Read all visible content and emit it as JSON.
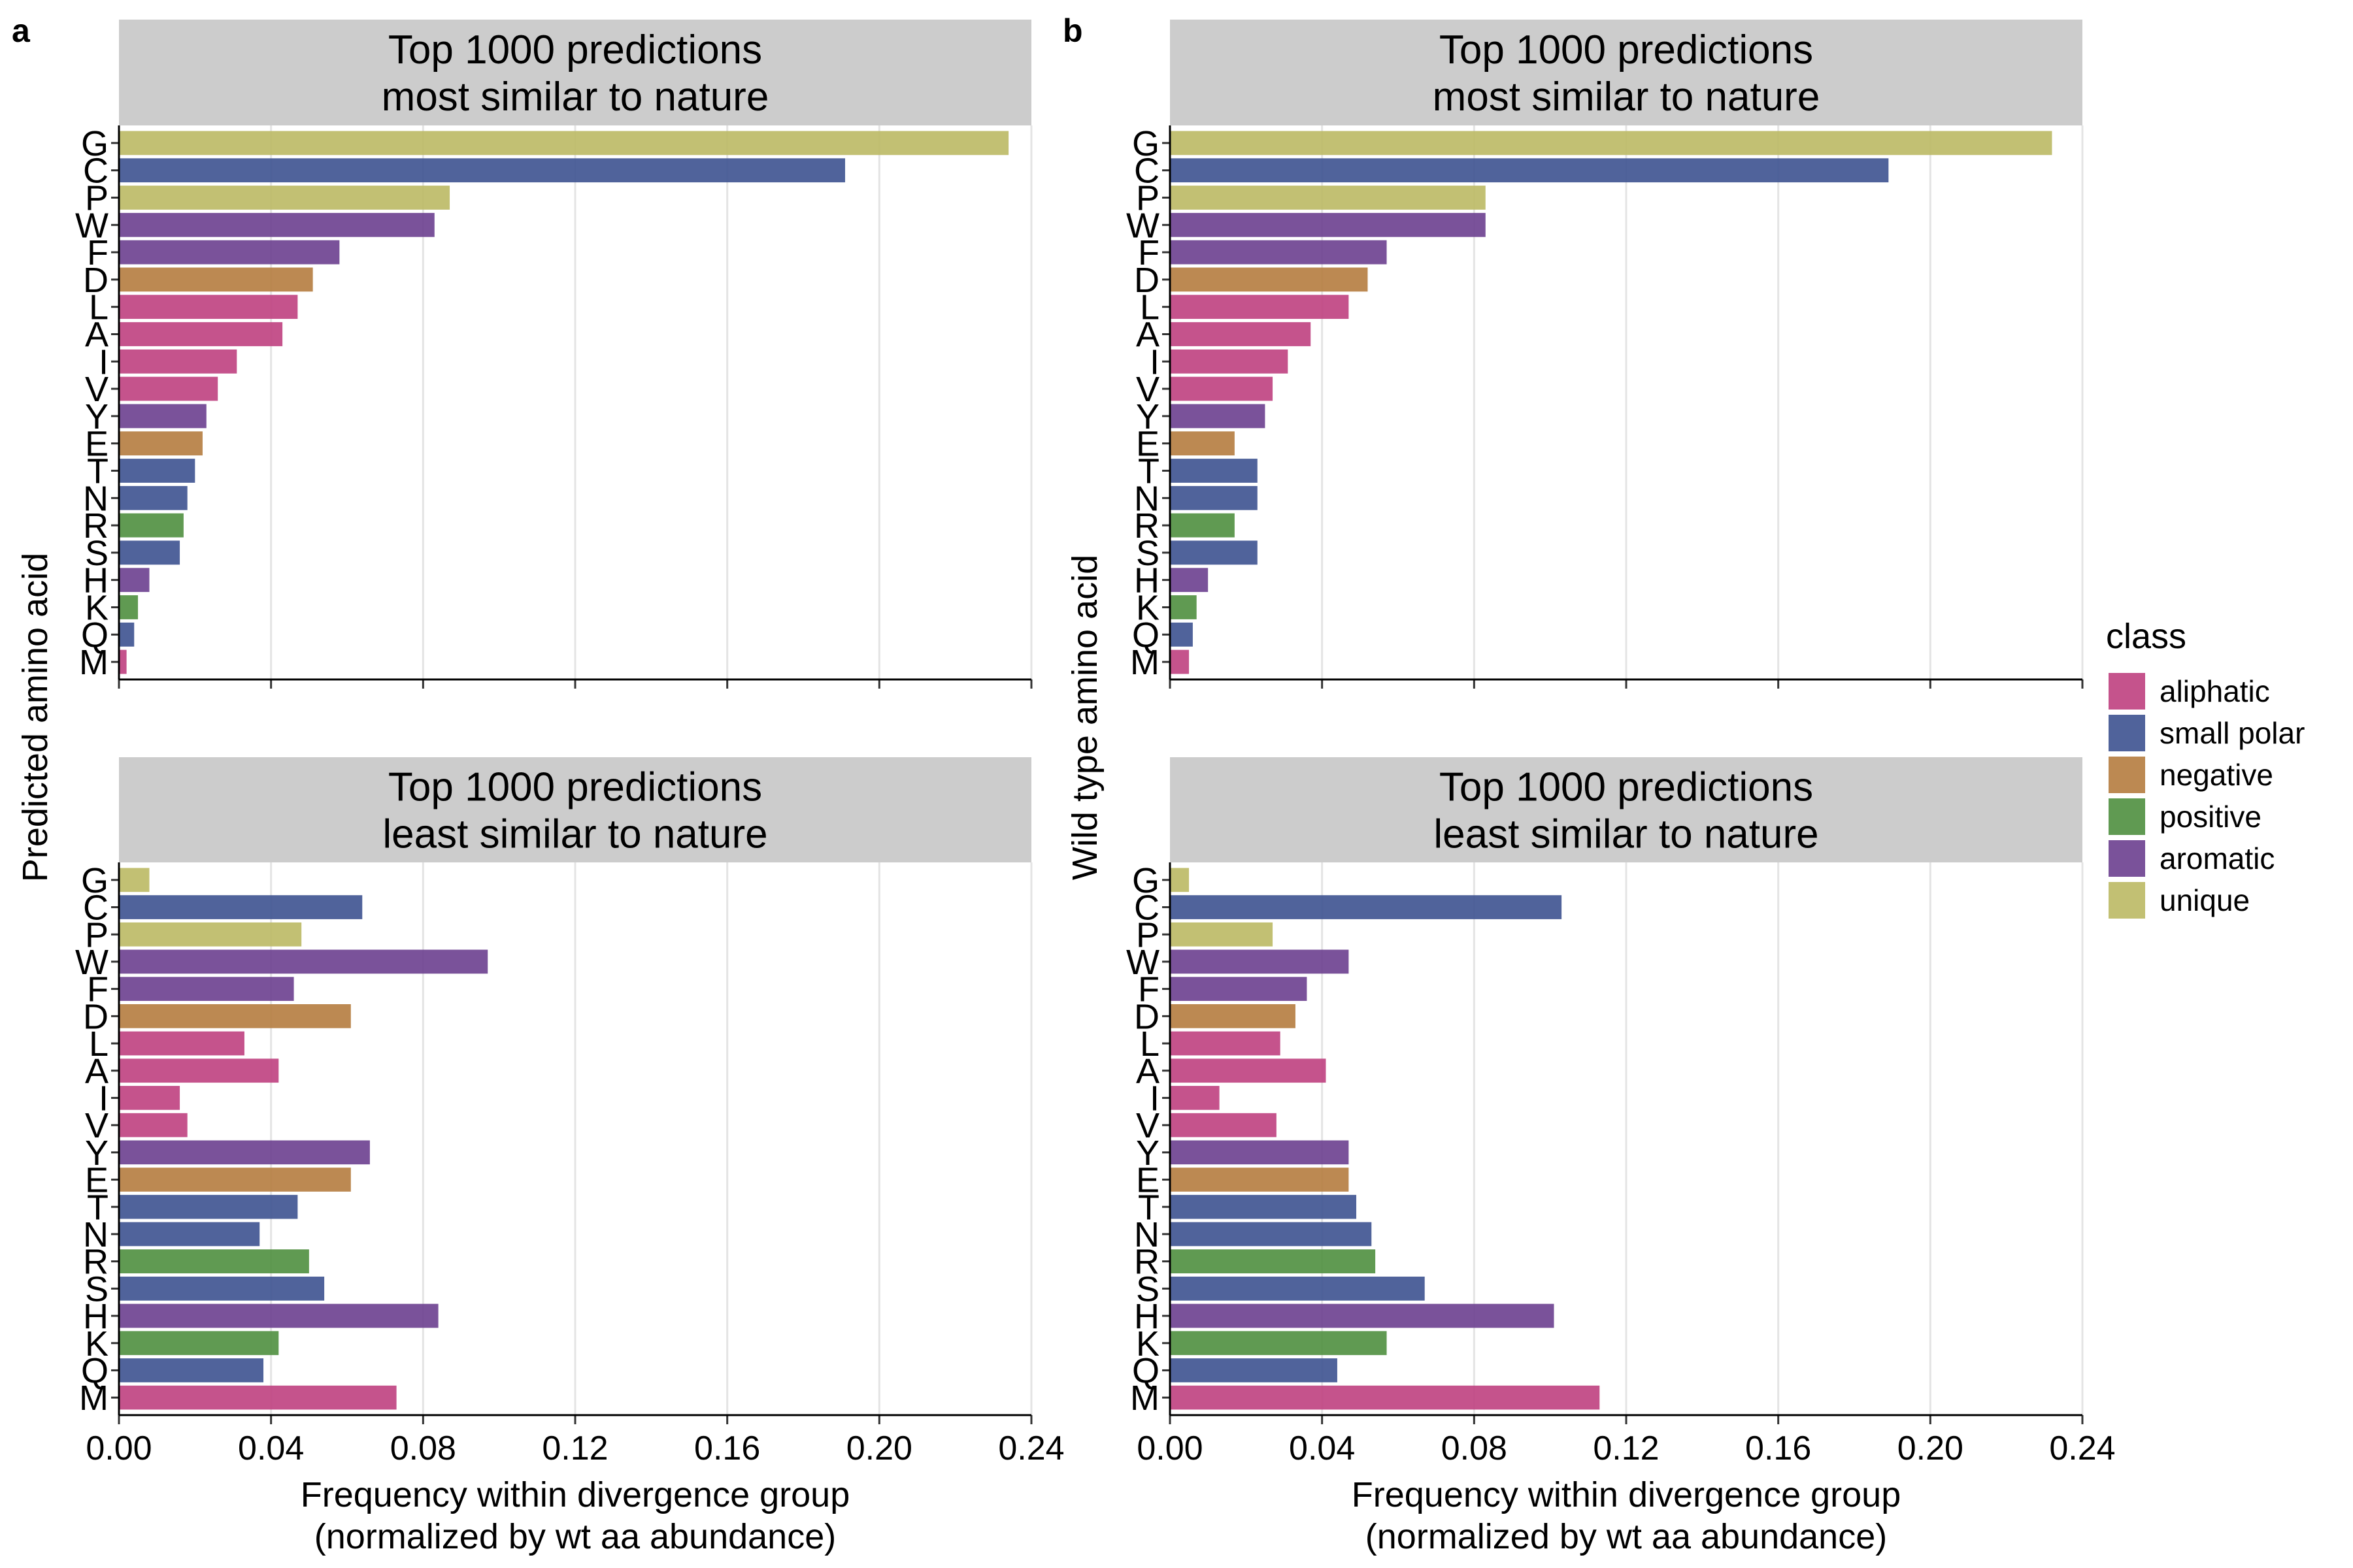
{
  "figure": {
    "panel_labels": [
      "a",
      "b"
    ],
    "x_title_lines": [
      "Frequency within divergence group",
      "(normalized by wt aa abundance)"
    ],
    "legend": {
      "title": "class",
      "items": [
        {
          "name": "aliphatic",
          "color": "#bf4080"
        },
        {
          "name": "small polar",
          "color": "#3d5290"
        },
        {
          "name": "negative",
          "color": "#b57c3f"
        },
        {
          "name": "positive",
          "color": "#4f8f3f"
        },
        {
          "name": "aromatic",
          "color": "#6b3f8f"
        },
        {
          "name": "unique",
          "color": "#bbb964"
        }
      ]
    }
  },
  "chart_data": [
    {
      "type": "bar",
      "orientation": "horizontal",
      "panel": "a",
      "title_lines": [
        "Top 1000 predictions",
        "most similar to nature"
      ],
      "ylabel": "Predicted amino acid",
      "xlabel": "Frequency within divergence group (normalized by wt aa abundance)",
      "xlim": [
        0,
        0.24
      ],
      "xticks": [
        "0.00",
        "0.04",
        "0.08",
        "0.12",
        "0.16",
        "0.20",
        "0.24"
      ],
      "grid": true,
      "categories": [
        "G",
        "C",
        "P",
        "W",
        "F",
        "D",
        "L",
        "A",
        "I",
        "V",
        "Y",
        "E",
        "T",
        "N",
        "R",
        "S",
        "H",
        "K",
        "Q",
        "M"
      ],
      "classes": [
        "unique",
        "small polar",
        "unique",
        "aromatic",
        "aromatic",
        "negative",
        "aliphatic",
        "aliphatic",
        "aliphatic",
        "aliphatic",
        "aromatic",
        "negative",
        "small polar",
        "small polar",
        "positive",
        "small polar",
        "aromatic",
        "positive",
        "small polar",
        "aliphatic"
      ],
      "values": [
        0.234,
        0.191,
        0.087,
        0.083,
        0.058,
        0.051,
        0.047,
        0.043,
        0.031,
        0.026,
        0.023,
        0.022,
        0.02,
        0.018,
        0.017,
        0.016,
        0.008,
        0.005,
        0.004,
        0.002
      ]
    },
    {
      "type": "bar",
      "orientation": "horizontal",
      "panel": "a",
      "title_lines": [
        "Top 1000 predictions",
        "least similar to nature"
      ],
      "ylabel": "Predicted amino acid",
      "xlabel": "Frequency within divergence group (normalized by wt aa abundance)",
      "xlim": [
        0,
        0.24
      ],
      "xticks": [
        "0.00",
        "0.04",
        "0.08",
        "0.12",
        "0.16",
        "0.20",
        "0.24"
      ],
      "grid": true,
      "categories": [
        "G",
        "C",
        "P",
        "W",
        "F",
        "D",
        "L",
        "A",
        "I",
        "V",
        "Y",
        "E",
        "T",
        "N",
        "R",
        "S",
        "H",
        "K",
        "Q",
        "M"
      ],
      "classes": [
        "unique",
        "small polar",
        "unique",
        "aromatic",
        "aromatic",
        "negative",
        "aliphatic",
        "aliphatic",
        "aliphatic",
        "aliphatic",
        "aromatic",
        "negative",
        "small polar",
        "small polar",
        "positive",
        "small polar",
        "aromatic",
        "positive",
        "small polar",
        "aliphatic"
      ],
      "values": [
        0.008,
        0.064,
        0.048,
        0.097,
        0.046,
        0.061,
        0.033,
        0.042,
        0.016,
        0.018,
        0.066,
        0.061,
        0.047,
        0.037,
        0.05,
        0.054,
        0.084,
        0.042,
        0.038,
        0.073
      ]
    },
    {
      "type": "bar",
      "orientation": "horizontal",
      "panel": "b",
      "title_lines": [
        "Top 1000 predictions",
        "most similar to nature"
      ],
      "ylabel": "Wild type amino acid",
      "xlabel": "Frequency within divergence group (normalized by wt aa abundance)",
      "xlim": [
        0,
        0.24
      ],
      "xticks": [
        "0.00",
        "0.04",
        "0.08",
        "0.12",
        "0.16",
        "0.20",
        "0.24"
      ],
      "grid": true,
      "categories": [
        "G",
        "C",
        "P",
        "W",
        "F",
        "D",
        "L",
        "A",
        "I",
        "V",
        "Y",
        "E",
        "T",
        "N",
        "R",
        "S",
        "H",
        "K",
        "Q",
        "M"
      ],
      "classes": [
        "unique",
        "small polar",
        "unique",
        "aromatic",
        "aromatic",
        "negative",
        "aliphatic",
        "aliphatic",
        "aliphatic",
        "aliphatic",
        "aromatic",
        "negative",
        "small polar",
        "small polar",
        "positive",
        "small polar",
        "aromatic",
        "positive",
        "small polar",
        "aliphatic"
      ],
      "values": [
        0.232,
        0.189,
        0.083,
        0.083,
        0.057,
        0.052,
        0.047,
        0.037,
        0.031,
        0.027,
        0.025,
        0.017,
        0.023,
        0.023,
        0.017,
        0.023,
        0.01,
        0.007,
        0.006,
        0.005
      ]
    },
    {
      "type": "bar",
      "orientation": "horizontal",
      "panel": "b",
      "title_lines": [
        "Top 1000 predictions",
        "least similar to nature"
      ],
      "ylabel": "Wild type amino acid",
      "xlabel": "Frequency within divergence group (normalized by wt aa abundance)",
      "xlim": [
        0,
        0.24
      ],
      "xticks": [
        "0.00",
        "0.04",
        "0.08",
        "0.12",
        "0.16",
        "0.20",
        "0.24"
      ],
      "grid": true,
      "categories": [
        "G",
        "C",
        "P",
        "W",
        "F",
        "D",
        "L",
        "A",
        "I",
        "V",
        "Y",
        "E",
        "T",
        "N",
        "R",
        "S",
        "H",
        "K",
        "Q",
        "M"
      ],
      "classes": [
        "unique",
        "small polar",
        "unique",
        "aromatic",
        "aromatic",
        "negative",
        "aliphatic",
        "aliphatic",
        "aliphatic",
        "aliphatic",
        "aromatic",
        "negative",
        "small polar",
        "small polar",
        "positive",
        "small polar",
        "aromatic",
        "positive",
        "small polar",
        "aliphatic"
      ],
      "values": [
        0.005,
        0.103,
        0.027,
        0.047,
        0.036,
        0.033,
        0.029,
        0.041,
        0.013,
        0.028,
        0.047,
        0.047,
        0.049,
        0.053,
        0.054,
        0.067,
        0.101,
        0.057,
        0.044,
        0.113
      ]
    }
  ]
}
